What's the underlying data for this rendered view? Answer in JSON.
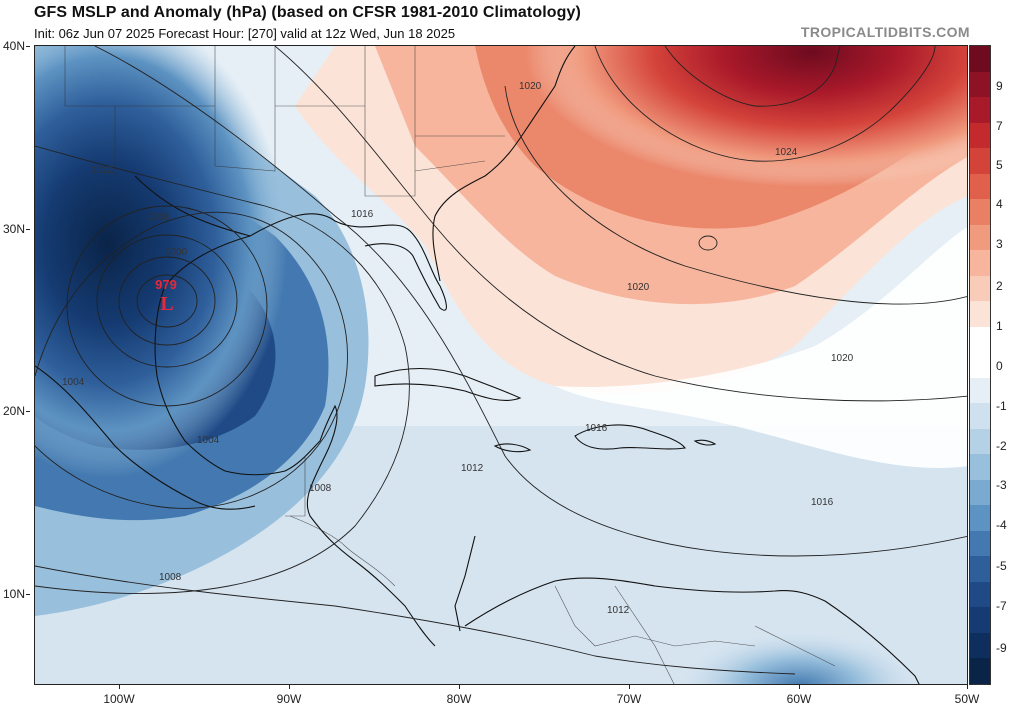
{
  "header": {
    "title": "GFS MSLP and Anomaly (hPa) (based on CFSR 1981-2010 Climatology)",
    "subtitle": "Init: 06z Jun 07 2025   Forecast Hour: [270]   valid at 12z Wed, Jun 18 2025",
    "credit": "TROPICALTIDBITS.COM"
  },
  "axes": {
    "latitude_labels": [
      "40N",
      "30N",
      "20N",
      "10N"
    ],
    "longitude_labels": [
      "100W",
      "90W",
      "80W",
      "70W",
      "60W",
      "50W"
    ]
  },
  "colorbar": {
    "labels": [
      "9",
      "7",
      "5",
      "4",
      "3",
      "2",
      "1",
      "0",
      "-1",
      "-2",
      "-3",
      "-4",
      "-5",
      "-7",
      "-9"
    ],
    "colors": [
      "#6e0b1f",
      "#8d1226",
      "#a8192a",
      "#c22a2e",
      "#d4433a",
      "#e0604c",
      "#e97f63",
      "#f09a7e",
      "#f6b59c",
      "#f9ccb9",
      "#fbe3d7",
      "#ffffff",
      "#ffffff",
      "#e6eff6",
      "#cfe0ee",
      "#b5d1e6",
      "#98bfdc",
      "#7aaad0",
      "#5d93c2",
      "#4379b0",
      "#2f5f9b",
      "#1f4a86",
      "#153b72",
      "#0e2f5e",
      "#0a2448"
    ]
  },
  "map": {
    "low_center_value": "979",
    "low_center_symbol": "L",
    "isobar_labels": [
      "1020",
      "1024",
      "1012",
      "1016",
      "1008",
      "1000",
      "1020",
      "1020",
      "1004",
      "1004",
      "1012",
      "1008",
      "1016",
      "1016",
      "1008",
      "1012"
    ]
  }
}
